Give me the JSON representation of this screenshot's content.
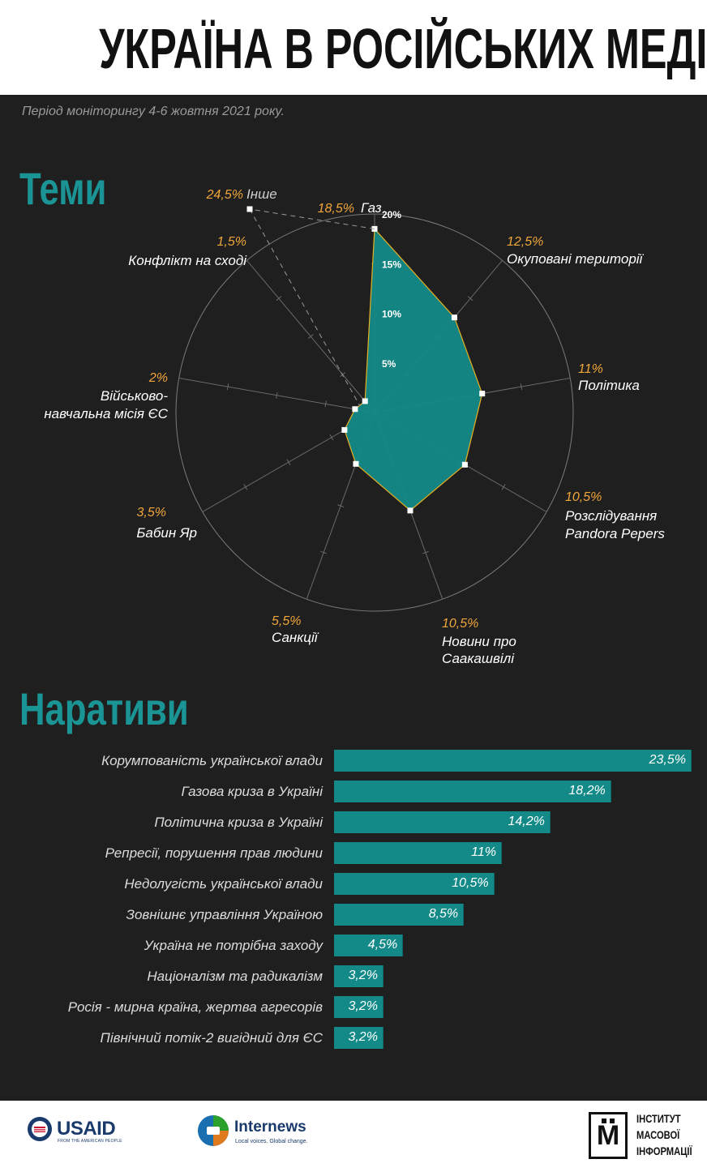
{
  "title": "УКРАЇНА В РОСІЙСЬКИХ МЕДІА",
  "subtitle": "Період моніторингу 4-6 жовтня 2021 року.",
  "sections": {
    "themes_title": "Теми",
    "narratives_title": "Наративи"
  },
  "colors": {
    "accent": "#1a9494",
    "radar_fill": "#148a88",
    "radar_stroke": "#e8b020",
    "value_label": "#f0a63a",
    "background": "#1f1f1f"
  },
  "chart_data": [
    {
      "type": "radar",
      "title": "Теми",
      "rlim": [
        0,
        20
      ],
      "rticks": [
        "5%",
        "10%",
        "15%",
        "20%"
      ],
      "rtick_values": [
        5,
        10,
        15,
        20
      ],
      "grid": true,
      "axes": [
        {
          "label": "Газ",
          "value": 18.5,
          "value_label": "18,5%"
        },
        {
          "label": "Окуповані території",
          "value": 12.5,
          "value_label": "12,5%"
        },
        {
          "label": "Політика",
          "value": 11,
          "value_label": "11%"
        },
        {
          "label": "Розслідування Pandora Pepers",
          "value": 10.5,
          "value_label": "10,5%"
        },
        {
          "label": "Новини про Саакашвілі",
          "value": 10.5,
          "value_label": "10,5%"
        },
        {
          "label": "Санкції",
          "value": 5.5,
          "value_label": "5,5%"
        },
        {
          "label": "Бабин Яр",
          "value": 3.5,
          "value_label": "3,5%"
        },
        {
          "label": "Військово-навчальна місія ЄС",
          "value": 2,
          "value_label": "2%"
        },
        {
          "label": "Конфлікт на сході",
          "value": 1.5,
          "value_label": "1,5%"
        }
      ],
      "outlier": {
        "label": "Інше",
        "value": 24.5,
        "value_label": "24,5%"
      }
    },
    {
      "type": "bar",
      "orientation": "horizontal",
      "title": "Наративи",
      "xlim": [
        0,
        23.5
      ],
      "categories": [
        "Корумпованість української влади",
        "Газова криза в Україні",
        "Політична криза в Україні",
        "Репресії, порушення прав людини",
        "Недолугість української влади",
        "Зовнішнє управління Україною",
        "Україна не потрібна заходу",
        "Націоналізм та радикалізм",
        "Росія - мирна країна, жертва агресорів",
        "Північний потік-2 вигідний для ЄС"
      ],
      "values": [
        23.5,
        18.2,
        14.2,
        11,
        10.5,
        8.5,
        4.5,
        3.2,
        3.2,
        3.2
      ],
      "value_labels": [
        "23,5%",
        "18,2%",
        "14,2%",
        "11%",
        "10,5%",
        "8,5%",
        "4,5%",
        "3,2%",
        "3,2%",
        "3,2%"
      ]
    }
  ],
  "footer": {
    "usaid_name": "USAID",
    "usaid_tagline": "FROM THE AMERICAN PEOPLE",
    "internews_name": "Internews",
    "internews_tagline": "Local voices. Global change.",
    "imi_lines": [
      "ІНСТИТУТ",
      "МАСОВОЇ",
      "ІНФОРМАЦІЇ"
    ],
    "imi_letter": "М"
  }
}
